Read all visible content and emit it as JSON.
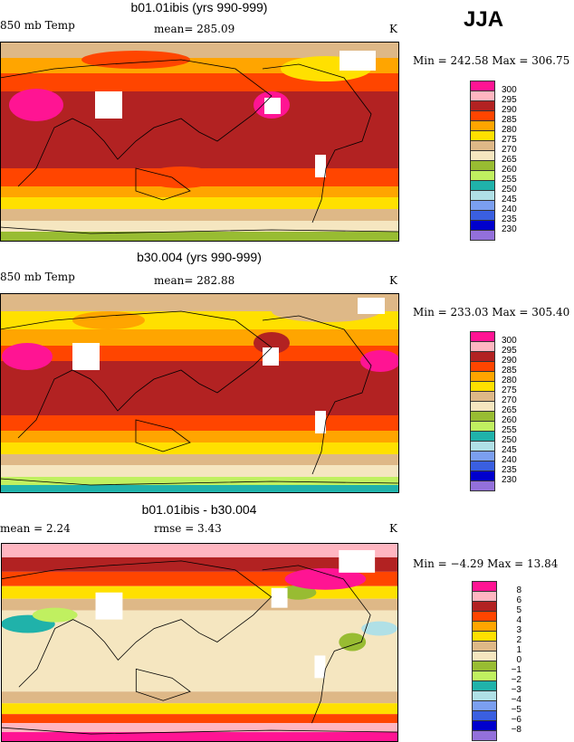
{
  "season": "JJA",
  "palette": [
    "#ff1493",
    "#ffb6c1",
    "#b22222",
    "#ff4500",
    "#ffa500",
    "#ffe000",
    "#deb887",
    "#f5e6c0",
    "#98bc32",
    "#c0f060",
    "#20b2aa",
    "#b0e0e6",
    "#7b9ff0",
    "#3a5fe0",
    "#0000cd",
    "#9370db"
  ],
  "panels": [
    {
      "title": "b01.01ibis (yrs 990-999)",
      "left_label": "850 mb Temp",
      "center_label": "mean= 285.09",
      "units": "K",
      "minmax": "Min = 242.58 Max = 306.75",
      "colorbar_labels": [
        "300",
        "295",
        "290",
        "285",
        "280",
        "275",
        "270",
        "265",
        "260",
        "255",
        "250",
        "245",
        "240",
        "235",
        "230"
      ]
    },
    {
      "title": "b30.004 (yrs 990-999)",
      "left_label": "850 mb Temp",
      "center_label": "mean= 282.88",
      "units": "K",
      "minmax": "Min = 233.03 Max = 305.40",
      "colorbar_labels": [
        "300",
        "295",
        "290",
        "285",
        "280",
        "275",
        "270",
        "265",
        "260",
        "255",
        "250",
        "245",
        "240",
        "235",
        "230"
      ]
    },
    {
      "title": "b01.01ibis - b30.004",
      "left_label": "mean =   2.24",
      "center_label": "rmse =   3.43",
      "units": "K",
      "minmax": "Min =  −4.29 Max =  13.84",
      "colorbar_labels": [
        "8",
        "6",
        "5",
        "4",
        "3",
        "2",
        "1",
        "0",
        "−1",
        "−2",
        "−3",
        "−4",
        "−5",
        "−6",
        "−8"
      ]
    }
  ]
}
